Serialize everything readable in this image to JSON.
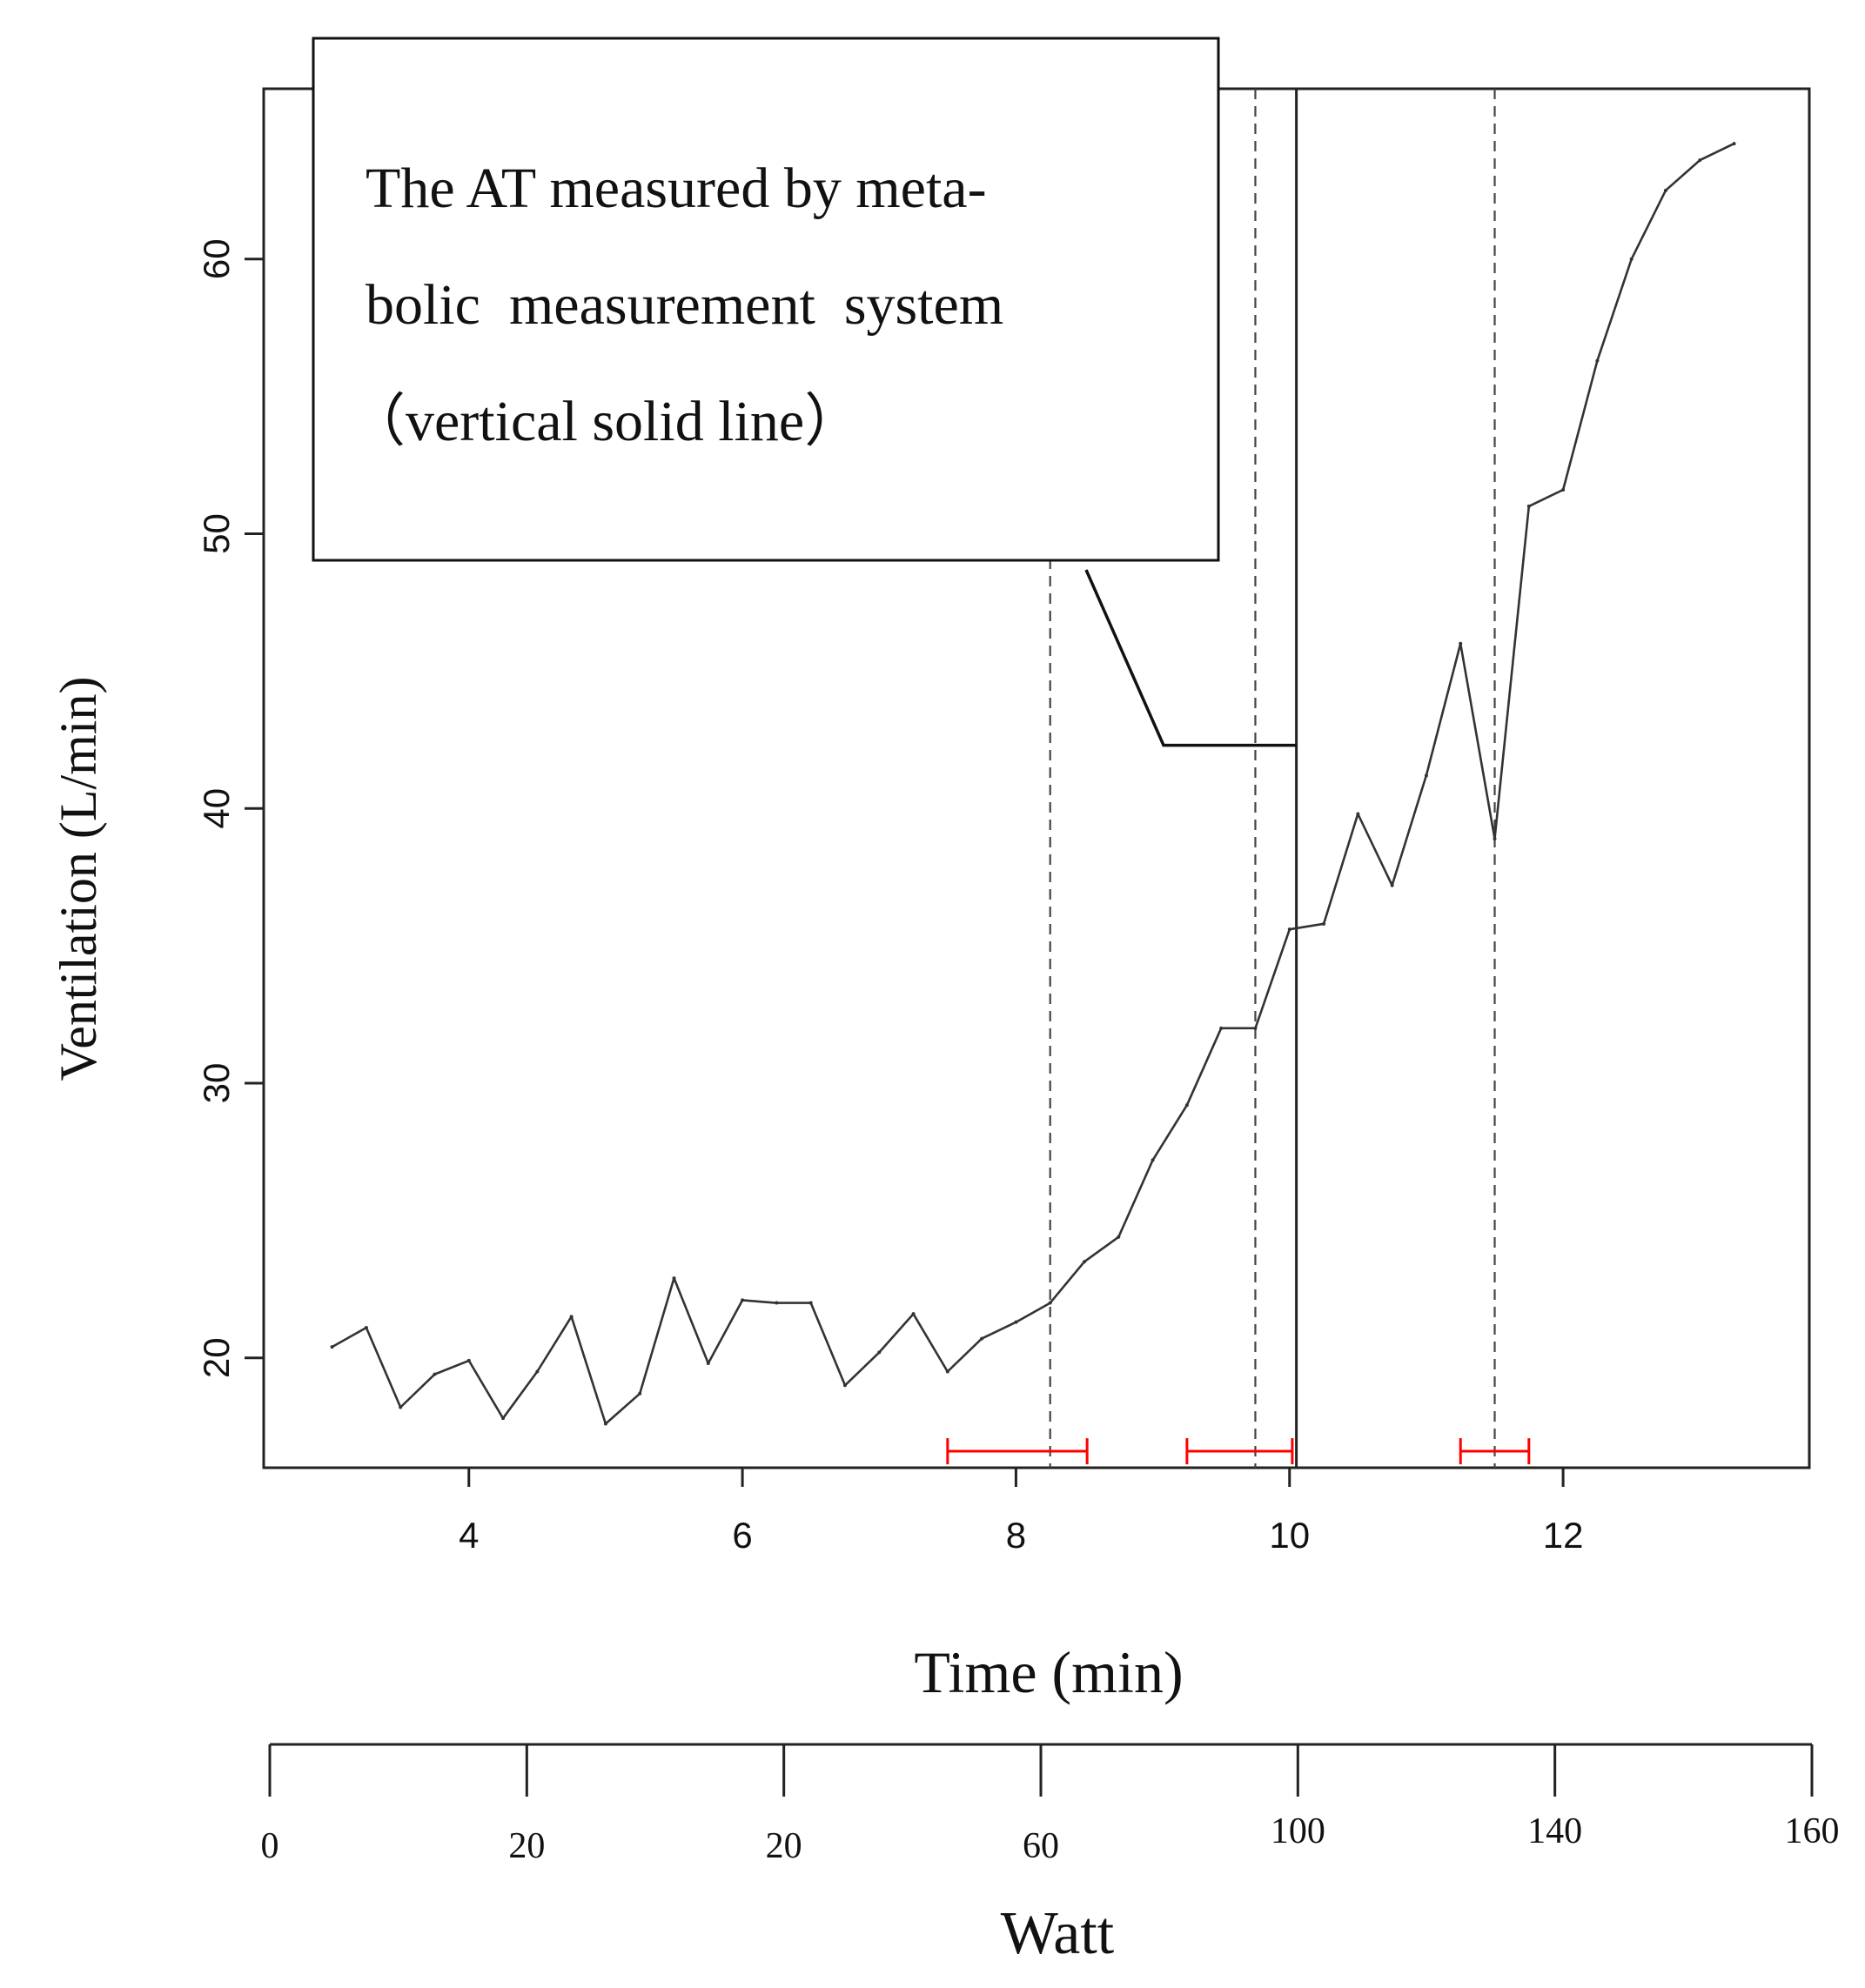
{
  "chart_data": {
    "type": "line",
    "xlabel": "Time (min)",
    "ylabel": "Ventilation (L/min)",
    "xlim": [
      2.5,
      13.8
    ],
    "ylim": [
      16,
      66.2
    ],
    "xticks": [
      4,
      6,
      8,
      10,
      12
    ],
    "yticks": [
      20,
      30,
      40,
      50,
      60
    ],
    "grid": false,
    "series": [
      {
        "name": "Ventilation",
        "x": [
          3.0,
          3.25,
          3.5,
          3.75,
          4.0,
          4.25,
          4.5,
          4.75,
          5.0,
          5.25,
          5.5,
          5.75,
          6.0,
          6.25,
          6.5,
          6.75,
          7.0,
          7.25,
          7.5,
          7.75,
          8.0,
          8.25,
          8.5,
          8.75,
          9.0,
          9.25,
          9.5,
          9.75,
          10.0,
          10.25,
          10.5,
          10.75,
          11.0,
          11.25,
          11.5,
          11.75,
          12.0,
          12.25,
          12.5,
          12.75,
          13.0,
          13.25
        ],
        "y": [
          20.4,
          21.1,
          18.2,
          19.4,
          19.9,
          17.8,
          19.5,
          21.5,
          17.6,
          18.7,
          22.9,
          19.8,
          22.1,
          22.0,
          22.0,
          19.0,
          20.2,
          21.6,
          19.5,
          20.7,
          21.3,
          22.0,
          23.5,
          24.4,
          27.2,
          29.2,
          32.0,
          32.0,
          35.6,
          35.8,
          39.8,
          37.2,
          41.2,
          46.0,
          38.9,
          51.0,
          51.6,
          56.3,
          60.0,
          62.5,
          63.6,
          64.2
        ]
      }
    ],
    "vertical_lines": [
      {
        "x": 8.25,
        "style": "dashed"
      },
      {
        "x": 9.75,
        "style": "dashed"
      },
      {
        "x": 10.05,
        "style": "solid"
      },
      {
        "x": 11.5,
        "style": "dashed"
      }
    ],
    "intervals": [
      {
        "from": 7.5,
        "to": 8.52,
        "y": 16.6,
        "color": "#ff0000"
      },
      {
        "from": 9.25,
        "to": 10.02,
        "y": 16.6,
        "color": "#ff0000"
      },
      {
        "from": 11.25,
        "to": 11.75,
        "y": 16.6,
        "color": "#ff0000"
      }
    ],
    "annotation": {
      "lines": [
        "The AT measured by meta-",
        "bolic  measurement  system",
        "（vertical solid line）"
      ],
      "pointer_target": {
        "x": 10.05,
        "y": 42.3
      }
    },
    "secondary_axis": {
      "label": "Watt",
      "tick_labels": [
        "0",
        "20",
        "20",
        "60",
        "100",
        "140",
        "160"
      ]
    },
    "colors": {
      "line": "#333333",
      "axis": "#222222",
      "interval": "#ff0000",
      "guide": "#444444"
    }
  }
}
